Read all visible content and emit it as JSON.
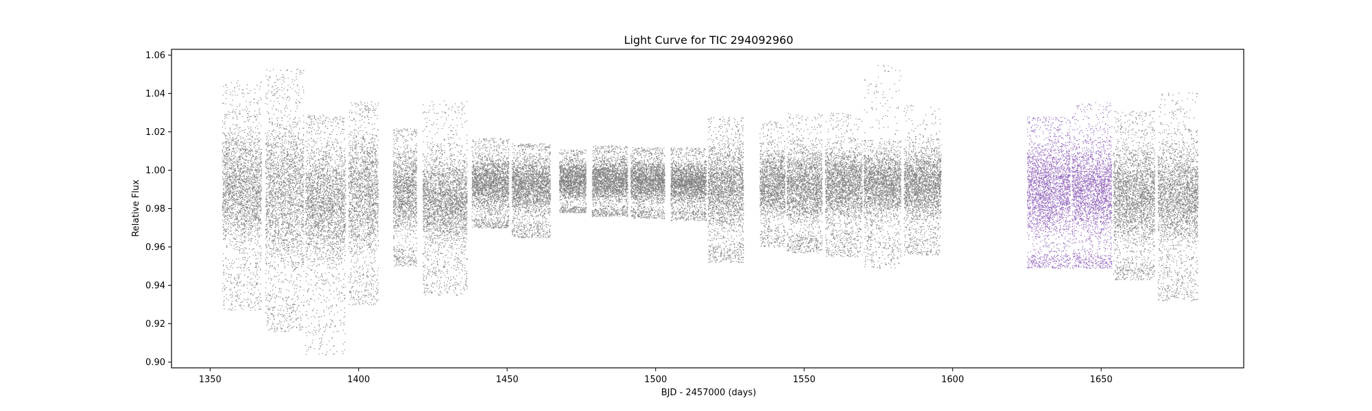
{
  "chart_data": {
    "type": "scatter",
    "title": "Light Curve for TIC 294092960",
    "xlabel": "BJD - 2457000 (days)",
    "ylabel": "Relative Flux",
    "xlim": [
      1337,
      1698
    ],
    "ylim": [
      0.897,
      1.063
    ],
    "xticks": [
      1350,
      1400,
      1450,
      1500,
      1550,
      1600,
      1650
    ],
    "yticks": [
      0.9,
      0.92,
      0.94,
      0.96,
      0.98,
      1.0,
      1.02,
      1.04,
      1.06
    ],
    "xtick_labels": [
      "1350",
      "1400",
      "1450",
      "1500",
      "1550",
      "1600",
      "1650"
    ],
    "ytick_labels": [
      "0.90",
      "0.92",
      "0.94",
      "0.96",
      "0.98",
      "1.00",
      "1.02",
      "1.04",
      "1.06"
    ],
    "grid": false,
    "colors": {
      "gray_points": "#7f7f7f",
      "highlight_points": "#9467bd"
    },
    "segments": [
      {
        "x_start": 1354.0,
        "x_end": 1367.2,
        "lo": 0.95,
        "hi": 1.032,
        "tail_lo": 0.927,
        "tail_hi": 1.047,
        "highlight": false
      },
      {
        "x_start": 1368.5,
        "x_end": 1381.5,
        "lo": 0.936,
        "hi": 1.04,
        "tail_lo": 0.916,
        "tail_hi": 1.053,
        "highlight": false
      },
      {
        "x_start": 1382.0,
        "x_end": 1395.5,
        "lo": 0.943,
        "hi": 1.023,
        "tail_lo": 0.904,
        "tail_hi": 1.029,
        "highlight": false
      },
      {
        "x_start": 1396.5,
        "x_end": 1406.5,
        "lo": 0.945,
        "hi": 1.03,
        "tail_lo": 0.93,
        "tail_hi": 1.036,
        "highlight": false
      },
      {
        "x_start": 1411.5,
        "x_end": 1419.5,
        "lo": 0.96,
        "hi": 1.018,
        "tail_lo": 0.95,
        "tail_hi": 1.022,
        "highlight": false
      },
      {
        "x_start": 1421.5,
        "x_end": 1436.5,
        "lo": 0.955,
        "hi": 1.015,
        "tail_lo": 0.935,
        "tail_hi": 1.037,
        "highlight": false
      },
      {
        "x_start": 1438.0,
        "x_end": 1450.5,
        "lo": 0.975,
        "hi": 1.012,
        "tail_lo": 0.97,
        "tail_hi": 1.017,
        "highlight": false
      },
      {
        "x_start": 1451.5,
        "x_end": 1464.5,
        "lo": 0.972,
        "hi": 1.012,
        "tail_lo": 0.965,
        "tail_hi": 1.014,
        "highlight": false
      },
      {
        "x_start": 1467.5,
        "x_end": 1476.5,
        "lo": 0.981,
        "hi": 1.009,
        "tail_lo": 0.978,
        "tail_hi": 1.011,
        "highlight": false
      },
      {
        "x_start": 1478.5,
        "x_end": 1490.5,
        "lo": 0.98,
        "hi": 1.01,
        "tail_lo": 0.976,
        "tail_hi": 1.013,
        "highlight": false
      },
      {
        "x_start": 1491.5,
        "x_end": 1503.0,
        "lo": 0.98,
        "hi": 1.009,
        "tail_lo": 0.975,
        "tail_hi": 1.012,
        "highlight": false
      },
      {
        "x_start": 1505.0,
        "x_end": 1517.0,
        "lo": 0.979,
        "hi": 1.009,
        "tail_lo": 0.974,
        "tail_hi": 1.012,
        "highlight": false
      },
      {
        "x_start": 1517.5,
        "x_end": 1529.5,
        "lo": 0.962,
        "hi": 1.02,
        "tail_lo": 0.952,
        "tail_hi": 1.028,
        "highlight": false
      },
      {
        "x_start": 1535.0,
        "x_end": 1543.5,
        "lo": 0.97,
        "hi": 1.016,
        "tail_lo": 0.96,
        "tail_hi": 1.026,
        "highlight": false
      },
      {
        "x_start": 1544.0,
        "x_end": 1556.0,
        "lo": 0.966,
        "hi": 1.018,
        "tail_lo": 0.957,
        "tail_hi": 1.03,
        "highlight": false
      },
      {
        "x_start": 1557.0,
        "x_end": 1569.5,
        "lo": 0.968,
        "hi": 1.017,
        "tail_lo": 0.955,
        "tail_hi": 1.03,
        "highlight": false
      },
      {
        "x_start": 1570.0,
        "x_end": 1582.5,
        "lo": 0.97,
        "hi": 1.016,
        "tail_lo": 0.949,
        "tail_hi": 1.055,
        "highlight": false
      },
      {
        "x_start": 1583.5,
        "x_end": 1596.0,
        "lo": 0.968,
        "hi": 1.017,
        "tail_lo": 0.956,
        "tail_hi": 1.034,
        "highlight": false
      },
      {
        "x_start": 1625.0,
        "x_end": 1639.5,
        "lo": 0.956,
        "hi": 1.024,
        "tail_lo": 0.949,
        "tail_hi": 1.028,
        "highlight": true
      },
      {
        "x_start": 1640.0,
        "x_end": 1653.5,
        "lo": 0.956,
        "hi": 1.024,
        "tail_lo": 0.949,
        "tail_hi": 1.036,
        "highlight": true
      },
      {
        "x_start": 1654.0,
        "x_end": 1668.0,
        "lo": 0.952,
        "hi": 1.022,
        "tail_lo": 0.943,
        "tail_hi": 1.031,
        "highlight": false
      },
      {
        "x_start": 1669.0,
        "x_end": 1682.5,
        "lo": 0.952,
        "hi": 1.022,
        "tail_lo": 0.932,
        "tail_hi": 1.041,
        "highlight": false
      }
    ]
  }
}
